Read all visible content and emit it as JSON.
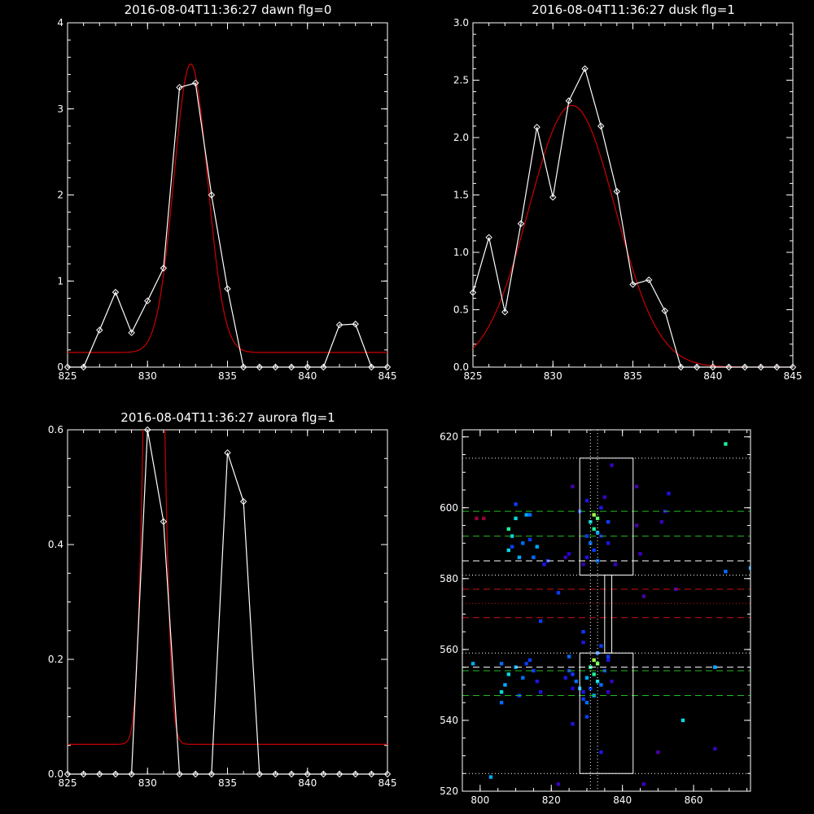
{
  "colors": {
    "background": "#000000",
    "axis": "#ffffff",
    "observed": "#ffffff",
    "fit": "#cc0000",
    "green_dash": "#22bb22",
    "red_dash": "#cc1111",
    "white_dash": "#ffffff"
  },
  "chart_data": [
    {
      "type": "line",
      "title": "2016-08-04T11:36:27 dawn flg=0",
      "xlabel": "",
      "ylabel": "",
      "xlim": [
        825,
        845
      ],
      "ylim": [
        0,
        4
      ],
      "xticks": [
        825,
        830,
        835,
        840,
        845
      ],
      "yticks": [
        0,
        1,
        2,
        3,
        4
      ],
      "ytick_labels": [
        "0",
        "1",
        "2",
        "3",
        "4"
      ],
      "series": [
        {
          "kind": "observed",
          "marker": "diamond",
          "x": [
            825,
            826,
            827,
            828,
            829,
            830,
            831,
            832,
            833,
            834,
            835,
            836,
            837,
            838,
            839,
            840,
            841,
            842,
            843,
            844,
            845
          ],
          "y": [
            0,
            0,
            0.43,
            0.87,
            0.4,
            0.77,
            1.15,
            3.25,
            3.3,
            2.0,
            0.91,
            0,
            0,
            0,
            0,
            0,
            0,
            0.49,
            0.5,
            0,
            0
          ]
        },
        {
          "kind": "fit",
          "model": "gaussian",
          "amplitude": 3.35,
          "center": 832.7,
          "sigma": 1.05,
          "offset": 0.17
        }
      ]
    },
    {
      "type": "line",
      "title": "2016-08-04T11:36:27 dusk flg=1",
      "xlabel": "",
      "ylabel": "",
      "xlim": [
        825,
        845
      ],
      "ylim": [
        0,
        3
      ],
      "xticks": [
        825,
        830,
        835,
        840,
        845
      ],
      "yticks": [
        0,
        0.5,
        1.0,
        1.5,
        2.0,
        2.5,
        3.0
      ],
      "ytick_labels": [
        "0.0",
        "0.5",
        "1.0",
        "1.5",
        "2.0",
        "2.5",
        "3.0"
      ],
      "series": [
        {
          "kind": "observed",
          "marker": "diamond",
          "x": [
            825,
            826,
            827,
            828,
            829,
            830,
            831,
            832,
            833,
            834,
            835,
            836,
            837,
            838,
            839,
            840,
            841,
            842,
            843,
            844,
            845
          ],
          "y": [
            0.65,
            1.13,
            0.48,
            1.25,
            2.09,
            1.48,
            2.32,
            2.6,
            2.1,
            1.53,
            0.72,
            0.76,
            0.49,
            0,
            0,
            0,
            0,
            0,
            0,
            0,
            0
          ]
        },
        {
          "kind": "fit",
          "model": "gaussian",
          "amplitude": 2.28,
          "center": 831.2,
          "sigma": 2.7,
          "offset": 0.0
        }
      ]
    },
    {
      "type": "line",
      "title": "2016-08-04T11:36:27 aurora flg=1",
      "xlabel": "",
      "ylabel": "",
      "xlim": [
        825,
        845
      ],
      "ylim": [
        0,
        0.6
      ],
      "xticks": [
        825,
        830,
        835,
        840,
        845
      ],
      "yticks": [
        0,
        0.2,
        0.4,
        0.6
      ],
      "ytick_labels": [
        "0.0",
        "0.2",
        "0.4",
        "0.6"
      ],
      "series": [
        {
          "kind": "observed",
          "marker": "diamond",
          "x": [
            825,
            826,
            827,
            828,
            829,
            830,
            831,
            832,
            833,
            834,
            835,
            836,
            837,
            838,
            839,
            840,
            841,
            842,
            843,
            844,
            845
          ],
          "y": [
            0,
            0,
            0,
            0,
            0,
            0.6,
            0.44,
            0,
            0,
            0,
            0.56,
            0.475,
            0,
            0,
            0,
            0,
            0,
            0,
            0,
            0,
            0
          ]
        },
        {
          "kind": "fit",
          "model": "gaussian",
          "amplitude": 1.4,
          "center": 830.4,
          "sigma": 0.5,
          "offset": 0.052
        }
      ]
    },
    {
      "type": "heatmap",
      "title": "",
      "xlabel": "",
      "ylabel": "",
      "xlim": [
        795,
        876
      ],
      "ylim": [
        520,
        622
      ],
      "xticks": [
        800,
        820,
        840,
        860
      ],
      "yticks": [
        520,
        540,
        560,
        580,
        600,
        620
      ],
      "vlines": [
        {
          "x": 831,
          "style": "dotted",
          "color": "white"
        },
        {
          "x": 833,
          "style": "dotted",
          "color": "white"
        }
      ],
      "hlines": [
        {
          "y": 614,
          "style": "dotted",
          "color": "white"
        },
        {
          "y": 581,
          "style": "dotted",
          "color": "white"
        },
        {
          "y": 559,
          "style": "dotted",
          "color": "white"
        },
        {
          "y": 525,
          "style": "dotted",
          "color": "white"
        },
        {
          "y": 573,
          "style": "dotted",
          "color": "red"
        },
        {
          "y": 599,
          "style": "dashed",
          "color": "green"
        },
        {
          "y": 592,
          "style": "dashed",
          "color": "green"
        },
        {
          "y": 554,
          "style": "dashed",
          "color": "green"
        },
        {
          "y": 547,
          "style": "dashed",
          "color": "green"
        },
        {
          "y": 585,
          "style": "dashed",
          "color": "white"
        },
        {
          "y": 555,
          "style": "dashed",
          "color": "white"
        },
        {
          "y": 577,
          "style": "dashed",
          "color": "red"
        },
        {
          "y": 569,
          "style": "dashed",
          "color": "red"
        }
      ],
      "boxes": [
        {
          "x0": 828,
          "x1": 843,
          "y0": 581,
          "y1": 614
        },
        {
          "x0": 835,
          "x1": 837,
          "y0": 559,
          "y1": 581
        },
        {
          "x0": 828,
          "x1": 843,
          "y0": 525,
          "y1": 559
        }
      ],
      "pixels": [
        [
          832,
          598,
          0.9
        ],
        [
          833,
          597,
          0.8
        ],
        [
          831,
          596,
          0.6
        ],
        [
          832,
          594,
          0.7
        ],
        [
          833,
          593,
          0.5
        ],
        [
          830,
          592,
          0.3
        ],
        [
          834,
          592,
          0.2
        ],
        [
          831,
          590,
          0.4
        ],
        [
          832,
          588,
          0.3
        ],
        [
          830,
          586,
          0.2
        ],
        [
          833,
          585,
          0.4
        ],
        [
          829,
          584,
          0.1
        ],
        [
          828,
          599,
          0.3
        ],
        [
          834,
          600,
          0.2
        ],
        [
          835,
          603,
          0.1
        ],
        [
          830,
          602,
          0.2
        ],
        [
          837,
          612,
          0.1
        ],
        [
          826,
          606,
          0.05
        ],
        [
          825,
          587,
          0.15
        ],
        [
          824,
          586,
          0.1
        ],
        [
          836,
          596,
          0.3
        ],
        [
          836,
          590,
          0.2
        ],
        [
          838,
          584,
          0.1
        ],
        [
          844,
          606,
          0.05
        ],
        [
          845,
          587,
          0.1
        ],
        [
          844,
          595,
          0.05
        ],
        [
          853,
          604,
          0.2
        ],
        [
          852,
          599,
          0.15
        ],
        [
          851,
          596,
          0.1
        ],
        [
          855,
          577,
          0.1
        ],
        [
          846,
          575,
          0.05
        ],
        [
          869,
          618,
          0.7
        ],
        [
          876,
          583,
          0.5
        ],
        [
          869,
          582,
          0.4
        ],
        [
          822,
          576,
          0.3
        ],
        [
          817,
          568,
          0.3
        ],
        [
          813,
          598,
          0.5
        ],
        [
          814,
          598,
          0.4
        ],
        [
          810,
          601,
          0.3
        ],
        [
          810,
          597,
          0.6
        ],
        [
          808,
          594,
          0.7
        ],
        [
          809,
          592,
          0.6
        ],
        [
          812,
          590,
          0.4
        ],
        [
          814,
          591,
          0.3
        ],
        [
          816,
          589,
          0.5
        ],
        [
          808,
          588,
          0.6
        ],
        [
          811,
          586,
          0.5
        ],
        [
          815,
          586,
          0.4
        ],
        [
          819,
          585,
          0.3
        ],
        [
          818,
          584,
          0.2
        ],
        [
          809,
          589,
          0.3
        ],
        [
          799,
          597,
          0.02
        ],
        [
          801,
          597,
          0.02
        ],
        [
          832,
          557,
          0.9
        ],
        [
          833,
          556,
          0.85
        ],
        [
          831,
          555,
          0.7
        ],
        [
          832,
          553,
          0.7
        ],
        [
          833,
          551,
          0.6
        ],
        [
          830,
          552,
          0.5
        ],
        [
          834,
          550,
          0.4
        ],
        [
          831,
          549,
          0.3
        ],
        [
          832,
          547,
          0.5
        ],
        [
          829,
          548,
          0.2
        ],
        [
          826,
          553,
          0.3
        ],
        [
          827,
          551,
          0.4
        ],
        [
          828,
          549,
          0.5
        ],
        [
          829,
          546,
          0.3
        ],
        [
          825,
          558,
          0.4
        ],
        [
          825,
          554,
          0.3
        ],
        [
          824,
          552,
          0.2
        ],
        [
          826,
          549,
          0.15
        ],
        [
          834,
          561,
          0.3
        ],
        [
          833,
          559,
          0.4
        ],
        [
          836,
          557,
          0.2
        ],
        [
          837,
          551,
          0.1
        ],
        [
          830,
          545,
          0.4
        ],
        [
          830,
          541,
          0.3
        ],
        [
          826,
          539,
          0.2
        ],
        [
          834,
          531,
          0.2
        ],
        [
          829,
          562,
          0.2
        ],
        [
          829,
          565,
          0.3
        ],
        [
          836,
          558,
          0.3
        ],
        [
          835,
          554,
          0.3
        ],
        [
          836,
          548,
          0.1
        ],
        [
          806,
          556,
          0.4
        ],
        [
          808,
          553,
          0.6
        ],
        [
          810,
          555,
          0.5
        ],
        [
          812,
          552,
          0.4
        ],
        [
          813,
          556,
          0.3
        ],
        [
          815,
          554,
          0.3
        ],
        [
          816,
          551,
          0.2
        ],
        [
          806,
          548,
          0.6
        ],
        [
          806,
          545,
          0.4
        ],
        [
          811,
          547,
          0.3
        ],
        [
          817,
          548,
          0.2
        ],
        [
          807,
          550,
          0.5
        ],
        [
          814,
          557,
          0.3
        ],
        [
          798,
          556,
          0.5
        ],
        [
          803,
          524,
          0.5
        ],
        [
          822,
          522,
          0.1
        ],
        [
          846,
          522,
          0.1
        ],
        [
          850,
          531,
          0.05
        ],
        [
          857,
          540,
          0.6
        ],
        [
          866,
          555,
          0.5
        ],
        [
          866,
          532,
          0.1
        ]
      ]
    }
  ]
}
